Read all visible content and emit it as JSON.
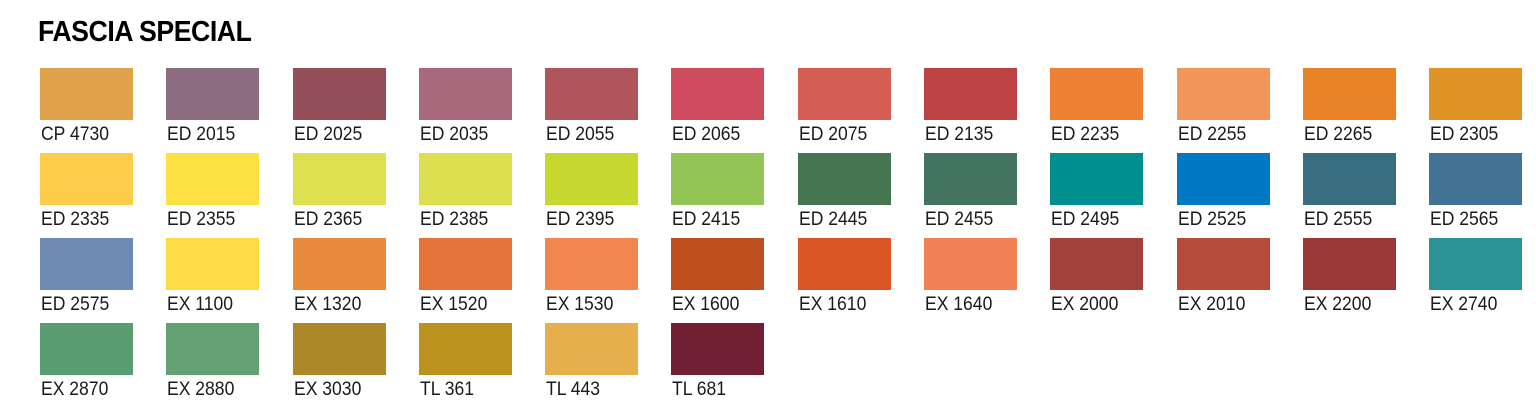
{
  "title": "FASCIA SPECIAL",
  "swatches": [
    {
      "code": "CP 4730",
      "color": "#E1A24C"
    },
    {
      "code": "ED 2015",
      "color": "#8C6C80"
    },
    {
      "code": "ED 2025",
      "color": "#954F5B"
    },
    {
      "code": "ED 2035",
      "color": "#A7697B"
    },
    {
      "code": "ED 2055",
      "color": "#B0555B"
    },
    {
      "code": "ED 2065",
      "color": "#CF4C5E"
    },
    {
      "code": "ED 2075",
      "color": "#D45D54"
    },
    {
      "code": "ED 2135",
      "color": "#BD4244"
    },
    {
      "code": "ED 2235",
      "color": "#EE8134"
    },
    {
      "code": "ED 2255",
      "color": "#F2965A"
    },
    {
      "code": "ED 2265",
      "color": "#E88328"
    },
    {
      "code": "ED 2305",
      "color": "#E09425"
    },
    {
      "code": "ED 2335",
      "color": "#FDCC4B"
    },
    {
      "code": "ED 2355",
      "color": "#FEE243"
    },
    {
      "code": "ED 2365",
      "color": "#DEE04F"
    },
    {
      "code": "ED 2385",
      "color": "#DCE050"
    },
    {
      "code": "ED 2395",
      "color": "#C6D72F"
    },
    {
      "code": "ED 2415",
      "color": "#95C456"
    },
    {
      "code": "ED 2445",
      "color": "#457551"
    },
    {
      "code": "ED 2455",
      "color": "#44745F"
    },
    {
      "code": "ED 2495",
      "color": "#008F8E"
    },
    {
      "code": "ED 2525",
      "color": "#0079C2"
    },
    {
      "code": "ED 2555",
      "color": "#376D7E"
    },
    {
      "code": "ED 2565",
      "color": "#437394"
    },
    {
      "code": "ED 2575",
      "color": "#6E8AB0"
    },
    {
      "code": "EX 1100",
      "color": "#FDDB44"
    },
    {
      "code": "EX 1320",
      "color": "#E8893C"
    },
    {
      "code": "EX 1520",
      "color": "#E6743A"
    },
    {
      "code": "EX 1530",
      "color": "#F08650"
    },
    {
      "code": "EX 1600",
      "color": "#BE501F"
    },
    {
      "code": "EX 1610",
      "color": "#DA5624"
    },
    {
      "code": "EX 1640",
      "color": "#EF8154"
    },
    {
      "code": "EX 2000",
      "color": "#A3423C"
    },
    {
      "code": "EX 2010",
      "color": "#B64B39"
    },
    {
      "code": "EX 2200",
      "color": "#9A3837"
    },
    {
      "code": "EX 2740",
      "color": "#2B9297"
    },
    {
      "code": "EX 2870",
      "color": "#5A9D71"
    },
    {
      "code": "EX 2880",
      "color": "#63A072"
    },
    {
      "code": "EX 3030",
      "color": "#AD8828"
    },
    {
      "code": "TL 361",
      "color": "#BC931F"
    },
    {
      "code": "TL 443",
      "color": "#E6AF4E"
    },
    {
      "code": "TL 681",
      "color": "#711F33"
    }
  ]
}
